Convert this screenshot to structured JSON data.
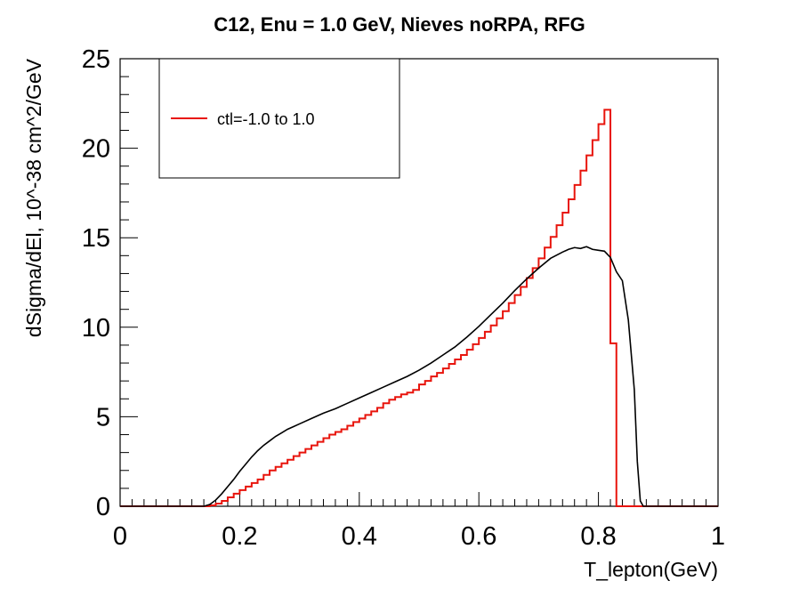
{
  "chart_data": {
    "type": "line",
    "title": "C12, Enu = 1.0 GeV, Nieves noRPA, RFG",
    "xlabel": "T_lepton(GeV)",
    "ylabel": "dSigma/dEl, 10^-38 cm^2/GeV",
    "xlim": [
      0,
      1
    ],
    "ylim": [
      0,
      25
    ],
    "x_ticks": [
      "0",
      "0.2",
      "0.4",
      "0.6",
      "0.8",
      "1"
    ],
    "y_ticks": [
      "0",
      "5",
      "10",
      "15",
      "20",
      "25"
    ],
    "grid": false,
    "legend": {
      "placement": "top-left",
      "entries": [
        "ctl=-1.0 to 1.0"
      ]
    },
    "series": [
      {
        "name": "ctl=-1.0 to 1.0",
        "style": "step",
        "color": "#e8140c",
        "bin_width": 0.01,
        "x": [
          0.0,
          0.01,
          0.02,
          0.03,
          0.04,
          0.05,
          0.06,
          0.07,
          0.08,
          0.09,
          0.1,
          0.11,
          0.12,
          0.13,
          0.14,
          0.15,
          0.16,
          0.17,
          0.18,
          0.19,
          0.2,
          0.21,
          0.22,
          0.23,
          0.24,
          0.25,
          0.26,
          0.27,
          0.28,
          0.29,
          0.3,
          0.31,
          0.32,
          0.33,
          0.34,
          0.35,
          0.36,
          0.37,
          0.38,
          0.39,
          0.4,
          0.41,
          0.42,
          0.43,
          0.44,
          0.45,
          0.46,
          0.47,
          0.48,
          0.49,
          0.5,
          0.51,
          0.52,
          0.53,
          0.54,
          0.55,
          0.56,
          0.57,
          0.58,
          0.59,
          0.6,
          0.61,
          0.62,
          0.63,
          0.64,
          0.65,
          0.66,
          0.67,
          0.68,
          0.69,
          0.7,
          0.71,
          0.72,
          0.73,
          0.74,
          0.75,
          0.76,
          0.77,
          0.78,
          0.79,
          0.8,
          0.81,
          0.82,
          0.83,
          0.84,
          0.85,
          0.86,
          0.87,
          0.88,
          0.89,
          0.9,
          0.91,
          0.92,
          0.93,
          0.94,
          0.95,
          0.96,
          0.97,
          0.98,
          0.99
        ],
        "values": [
          0,
          0,
          0,
          0,
          0,
          0,
          0,
          0,
          0,
          0,
          0,
          0,
          0,
          0,
          0,
          0.05,
          0.15,
          0.3,
          0.5,
          0.7,
          0.9,
          1.1,
          1.3,
          1.5,
          1.75,
          2.0,
          2.2,
          2.4,
          2.6,
          2.8,
          3.0,
          3.2,
          3.4,
          3.6,
          3.8,
          4.0,
          4.15,
          4.3,
          4.5,
          4.7,
          4.9,
          5.1,
          5.3,
          5.5,
          5.75,
          5.95,
          6.1,
          6.25,
          6.35,
          6.5,
          6.8,
          7.0,
          7.25,
          7.45,
          7.7,
          7.95,
          8.2,
          8.45,
          8.75,
          9.05,
          9.4,
          9.75,
          10.1,
          10.5,
          10.9,
          11.35,
          11.8,
          12.25,
          12.75,
          13.3,
          13.85,
          14.45,
          15.05,
          15.7,
          16.4,
          17.15,
          17.95,
          18.75,
          19.6,
          20.45,
          21.35,
          22.15,
          9.1,
          0,
          0,
          0,
          0,
          0,
          0,
          0,
          0,
          0,
          0,
          0,
          0,
          0,
          0,
          0,
          0,
          0
        ]
      },
      {
        "style": "line",
        "color": "#000000",
        "x": [
          0.0,
          0.14,
          0.15,
          0.16,
          0.17,
          0.18,
          0.19,
          0.2,
          0.21,
          0.22,
          0.23,
          0.24,
          0.25,
          0.26,
          0.27,
          0.28,
          0.29,
          0.3,
          0.32,
          0.34,
          0.36,
          0.38,
          0.4,
          0.42,
          0.44,
          0.46,
          0.48,
          0.5,
          0.52,
          0.54,
          0.56,
          0.58,
          0.6,
          0.62,
          0.64,
          0.66,
          0.68,
          0.7,
          0.72,
          0.74,
          0.75,
          0.76,
          0.77,
          0.78,
          0.79,
          0.8,
          0.81,
          0.82,
          0.83,
          0.84,
          0.85,
          0.86,
          0.865,
          0.87,
          0.875,
          1.0
        ],
        "values": [
          0,
          0,
          0.1,
          0.35,
          0.7,
          1.1,
          1.5,
          1.95,
          2.35,
          2.75,
          3.1,
          3.4,
          3.65,
          3.9,
          4.1,
          4.3,
          4.45,
          4.6,
          4.9,
          5.2,
          5.45,
          5.75,
          6.05,
          6.35,
          6.65,
          6.95,
          7.25,
          7.6,
          8.0,
          8.45,
          8.9,
          9.45,
          10.05,
          10.7,
          11.35,
          12.05,
          12.7,
          13.3,
          13.85,
          14.2,
          14.35,
          14.45,
          14.4,
          14.5,
          14.35,
          14.3,
          14.25,
          13.9,
          13.1,
          12.6,
          10.4,
          6.5,
          2.5,
          0.3,
          0,
          0
        ]
      }
    ]
  }
}
